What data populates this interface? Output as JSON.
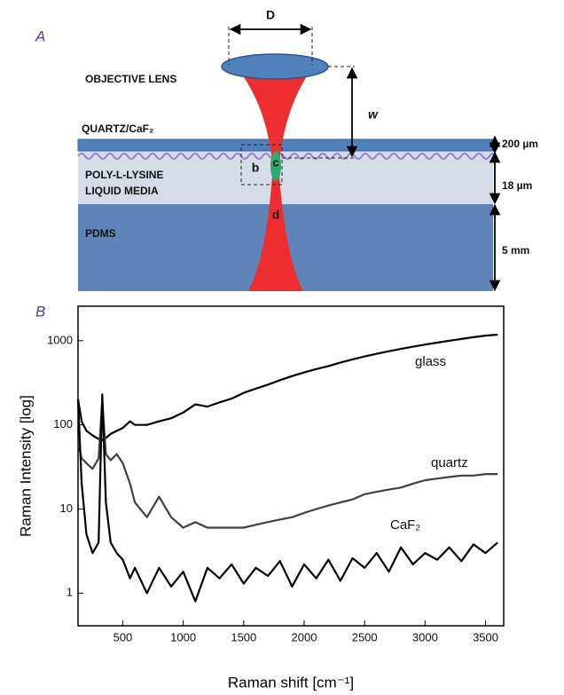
{
  "panel_labels": [
    "A",
    "B"
  ],
  "panel_a": {
    "lens_diameter": "D",
    "working_distance": "w",
    "region_b": "b",
    "region_c": "c",
    "region_d": "d",
    "objective": "OBJECTIVE LENS",
    "window": "QUARTZ/CaF₂",
    "coating": "POLY-L-LYSINE",
    "medium": "LIQUID MEDIA",
    "substrate": "PDMS",
    "window_thickness": "200 µm",
    "medium_thickness": "18 µm",
    "substrate_thickness": "5 mm"
  },
  "chart_data": {
    "type": "line",
    "x_label": "Raman shift [cm⁻¹]",
    "y_label": "Raman Intensity [log]",
    "log_y": true,
    "xlim": [
      130,
      3650
    ],
    "ylim": [
      0.41,
      2570
    ],
    "xticks": [
      500,
      1000,
      1500,
      2000,
      2500,
      3000,
      3500
    ],
    "yticks": [
      1,
      10,
      100,
      1000
    ],
    "x": [
      130,
      160,
      200,
      250,
      300,
      330,
      360,
      400,
      450,
      500,
      560,
      600,
      700,
      800,
      900,
      1000,
      1100,
      1200,
      1300,
      1400,
      1500,
      1600,
      1700,
      1800,
      1900,
      2000,
      2100,
      2200,
      2300,
      2400,
      2500,
      2600,
      2700,
      2800,
      2900,
      3000,
      3100,
      3200,
      3300,
      3400,
      3500,
      3600
    ],
    "series": [
      {
        "name": "glass",
        "color": "#000000",
        "values": [
          200,
          110,
          85,
          75,
          68,
          66,
          70,
          78,
          85,
          92,
          110,
          100,
          100,
          110,
          120,
          140,
          175,
          165,
          185,
          205,
          240,
          270,
          300,
          340,
          380,
          420,
          460,
          500,
          550,
          600,
          650,
          700,
          750,
          800,
          850,
          900,
          950,
          1000,
          1050,
          1100,
          1150,
          1180
        ]
      },
      {
        "name": "quartz",
        "color": "#404040",
        "values": [
          60,
          40,
          35,
          30,
          40,
          200,
          45,
          38,
          45,
          35,
          20,
          12,
          8,
          14,
          8,
          6,
          7,
          6,
          6,
          6,
          6,
          6.5,
          7,
          7.5,
          8,
          9,
          10,
          11,
          12,
          13,
          15,
          16,
          17,
          18,
          20,
          22,
          23,
          24,
          25,
          25,
          26,
          26
        ]
      },
      {
        "name": "CaF₂",
        "color": "#000000",
        "values": [
          200,
          20,
          5,
          3,
          4,
          230,
          12,
          4,
          3,
          2.5,
          1.5,
          2,
          1,
          2,
          1.2,
          1.8,
          0.8,
          2,
          1.5,
          2.2,
          1.3,
          2,
          1.6,
          2.4,
          1.2,
          2.2,
          1.5,
          2.5,
          1.4,
          2.6,
          2,
          3,
          1.8,
          3.5,
          2.2,
          3,
          2.5,
          3.5,
          2.4,
          3.8,
          3,
          4
        ]
      }
    ]
  }
}
